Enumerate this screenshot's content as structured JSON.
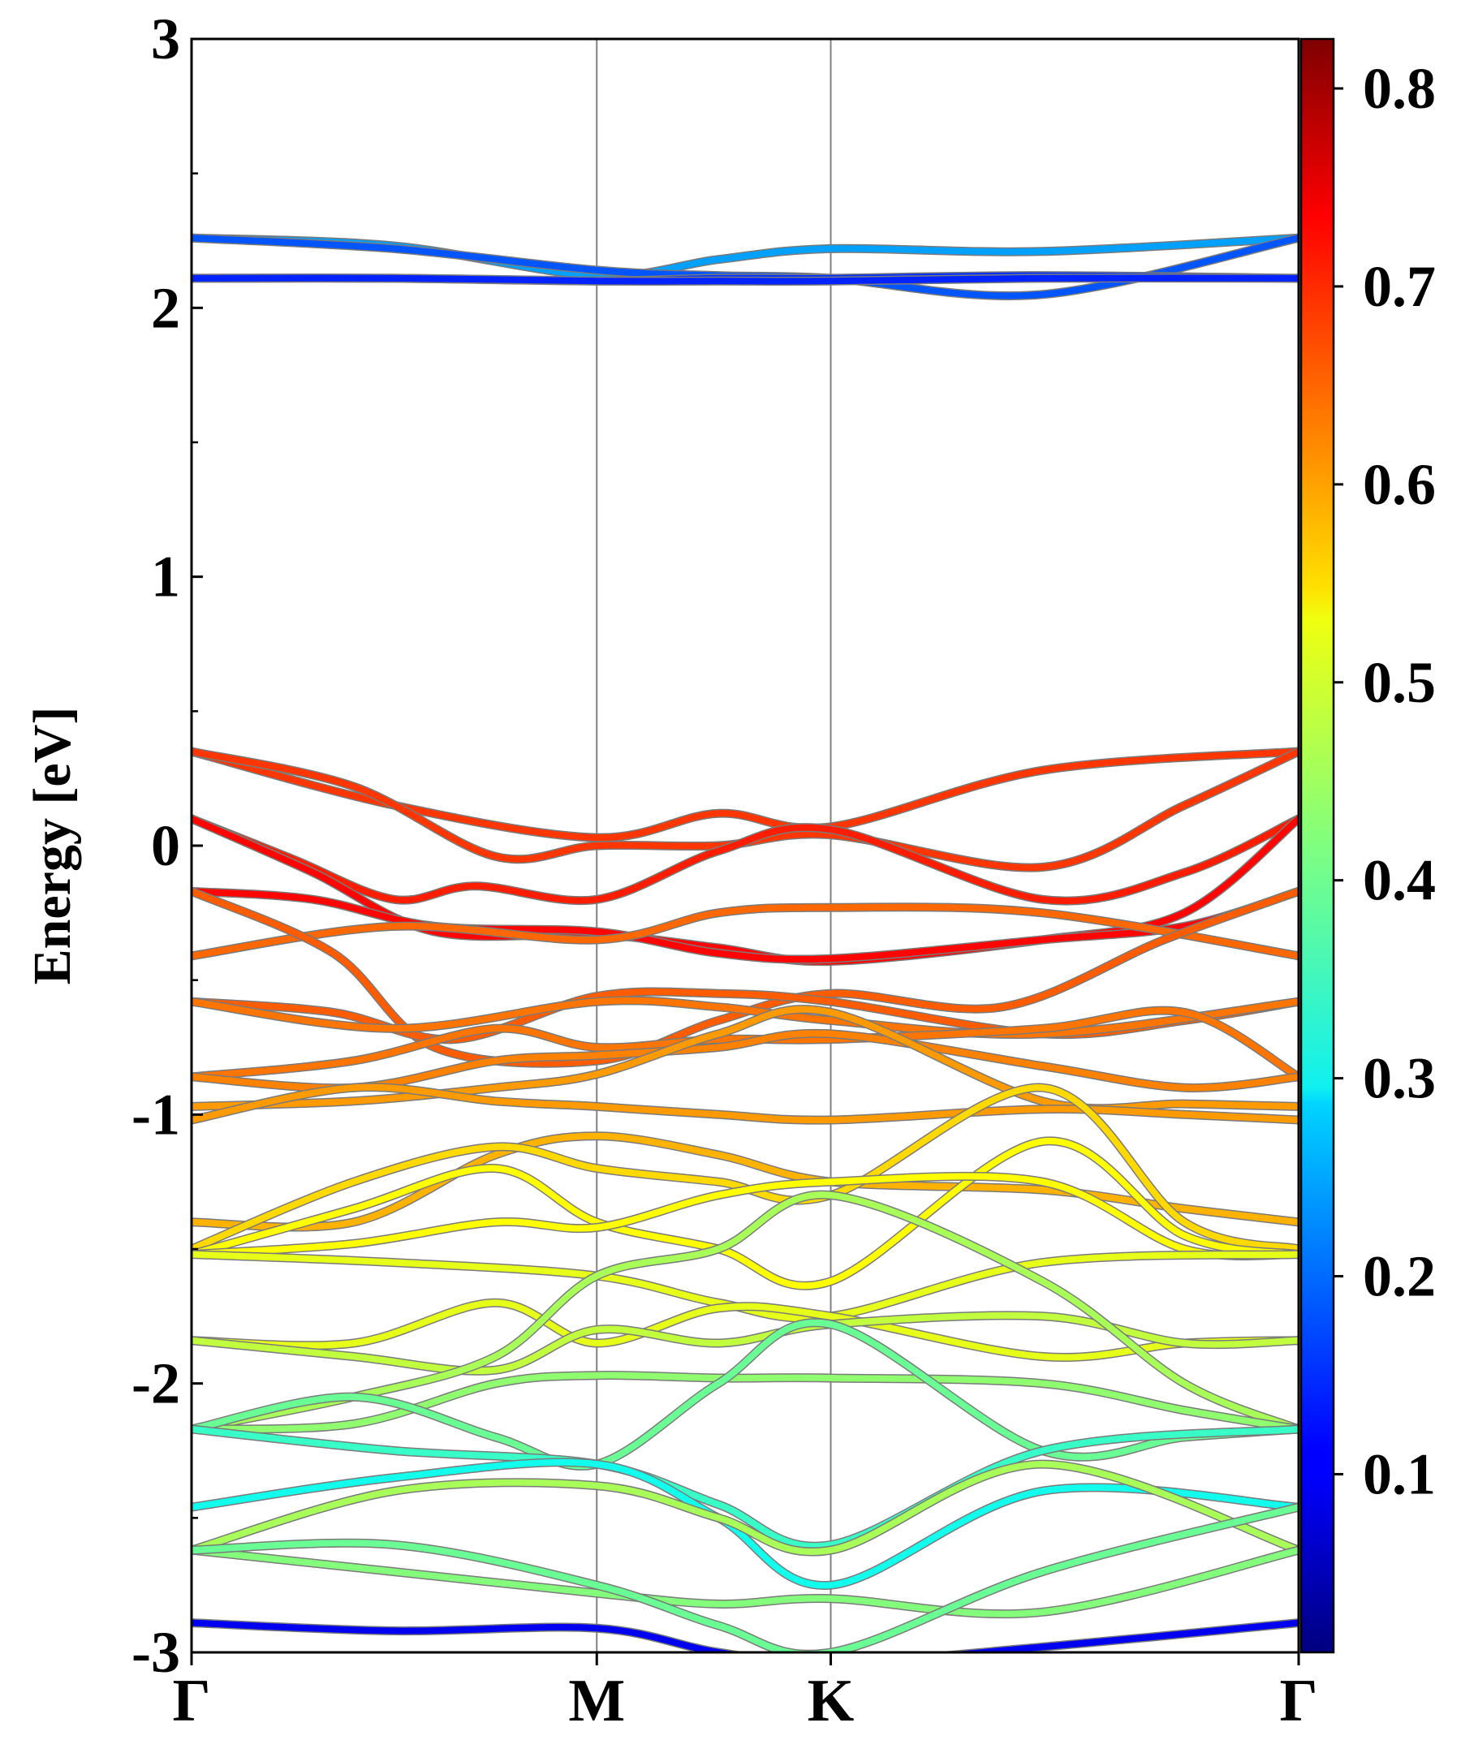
{
  "chart_data": {
    "type": "line",
    "title": "",
    "xlabel": "",
    "ylabel": "Energy [eV]",
    "ylim": [
      -3,
      3
    ],
    "yticks": [
      -3,
      -2,
      -1,
      0,
      1,
      2,
      3
    ],
    "x_ticks": [
      {
        "label": "Γ",
        "pos": 0.0
      },
      {
        "label": "M",
        "pos": 1.0
      },
      {
        "label": "K",
        "pos": 1.5774
      },
      {
        "label": "Γ",
        "pos": 2.7321
      }
    ],
    "vertical_lines_at": [
      1.0,
      1.5774
    ],
    "grid": false,
    "colorbar": {
      "colormap": "jet",
      "range": [
        0.01,
        0.825
      ],
      "ticks": [
        "0.1",
        "0.2",
        "0.3",
        "0.4",
        "0.5",
        "0.6",
        "0.7",
        "0.8"
      ]
    },
    "series": [
      {
        "weight": 0.24,
        "x": [
          0,
          0.5,
          1.0,
          1.3,
          1.5774,
          2.1,
          2.7321
        ],
        "y": [
          2.26,
          2.23,
          2.12,
          2.18,
          2.22,
          2.21,
          2.26
        ]
      },
      {
        "weight": 0.18,
        "x": [
          0,
          0.5,
          1.0,
          1.3,
          1.5774,
          2.1,
          2.7321
        ],
        "y": [
          2.26,
          2.22,
          2.14,
          2.12,
          2.11,
          2.05,
          2.26
        ]
      },
      {
        "weight": 0.15,
        "x": [
          0,
          0.5,
          1.0,
          1.3,
          1.5774,
          2.1,
          2.7321
        ],
        "y": [
          2.11,
          2.11,
          2.1,
          2.11,
          2.11,
          2.12,
          2.11
        ]
      },
      {
        "weight": 0.14,
        "x": [
          0,
          0.5,
          1.0,
          1.3,
          1.5774,
          2.1,
          2.7321
        ],
        "y": [
          2.11,
          2.11,
          2.1,
          2.1,
          2.1,
          2.11,
          2.11
        ]
      },
      {
        "weight": 0.68,
        "x": [
          0,
          0.5,
          1.0,
          1.3,
          1.5774,
          2.1,
          2.7321
        ],
        "y": [
          0.35,
          0.15,
          0.03,
          0.12,
          0.07,
          0.28,
          0.35
        ]
      },
      {
        "weight": 0.68,
        "x": [
          0,
          0.4,
          0.75,
          1.0,
          1.3,
          1.5774,
          2.1,
          2.45,
          2.7321
        ],
        "y": [
          0.35,
          0.22,
          -0.04,
          0.0,
          0.0,
          0.04,
          -0.08,
          0.15,
          0.35
        ]
      },
      {
        "weight": 0.7,
        "x": [
          0,
          0.25,
          0.5,
          0.7,
          1.0,
          1.3,
          1.5774,
          2.1,
          2.45,
          2.7321
        ],
        "y": [
          0.1,
          -0.05,
          -0.2,
          -0.15,
          -0.2,
          -0.02,
          0.06,
          -0.2,
          -0.1,
          0.1
        ]
      },
      {
        "weight": 0.72,
        "x": [
          0,
          0.3,
          0.6,
          1.0,
          1.3,
          1.5774,
          2.1,
          2.45,
          2.7321
        ],
        "y": [
          0.1,
          -0.1,
          -0.32,
          -0.33,
          -0.38,
          -0.43,
          -0.35,
          -0.25,
          0.1
        ]
      },
      {
        "weight": 0.72,
        "x": [
          0,
          0.3,
          0.6,
          1.0,
          1.3,
          1.5774,
          2.1,
          2.45,
          2.7321
        ],
        "y": [
          -0.17,
          -0.2,
          -0.3,
          -0.32,
          -0.4,
          -0.42,
          -0.35,
          -0.3,
          -0.17
        ]
      },
      {
        "weight": 0.64,
        "x": [
          0,
          0.5,
          1.0,
          1.3,
          1.5774,
          2.1,
          2.7321
        ],
        "y": [
          -0.41,
          -0.3,
          -0.35,
          -0.25,
          -0.23,
          -0.25,
          -0.41
        ]
      },
      {
        "weight": 0.65,
        "x": [
          0,
          0.35,
          0.6,
          1.0,
          1.3,
          1.5774,
          2.0,
          2.4,
          2.7321
        ],
        "y": [
          -0.17,
          -0.4,
          -0.75,
          -0.8,
          -0.65,
          -0.55,
          -0.6,
          -0.35,
          -0.17
        ]
      },
      {
        "weight": 0.65,
        "x": [
          0,
          0.35,
          0.65,
          1.0,
          1.3,
          1.5774,
          2.1,
          2.45,
          2.7321
        ],
        "y": [
          -0.58,
          -0.62,
          -0.72,
          -0.56,
          -0.55,
          -0.58,
          -0.7,
          -0.65,
          -0.58
        ]
      },
      {
        "weight": 0.63,
        "x": [
          0,
          0.5,
          1.0,
          1.3,
          1.5774,
          2.1,
          2.7321
        ],
        "y": [
          -0.58,
          -0.68,
          -0.58,
          -0.6,
          -0.65,
          -0.7,
          -0.58
        ]
      },
      {
        "weight": 0.63,
        "x": [
          0,
          0.4,
          0.75,
          1.0,
          1.3,
          1.5774,
          2.1,
          2.45,
          2.7321
        ],
        "y": [
          -0.86,
          -0.8,
          -0.68,
          -0.75,
          -0.72,
          -0.72,
          -0.68,
          -0.62,
          -0.86
        ]
      },
      {
        "weight": 0.62,
        "x": [
          0,
          0.4,
          0.75,
          1.0,
          1.3,
          1.5774,
          2.1,
          2.45,
          2.7321
        ],
        "y": [
          -0.86,
          -0.9,
          -0.8,
          -0.78,
          -0.75,
          -0.7,
          -0.82,
          -0.9,
          -0.86
        ]
      },
      {
        "weight": 0.6,
        "x": [
          0,
          0.4,
          0.75,
          1.0,
          1.3,
          1.5774,
          2.1,
          2.45,
          2.7321
        ],
        "y": [
          -0.97,
          -0.95,
          -0.9,
          -0.85,
          -0.7,
          -0.62,
          -0.95,
          -0.96,
          -0.97
        ]
      },
      {
        "weight": 0.6,
        "x": [
          0,
          0.4,
          0.75,
          1.0,
          1.3,
          1.5774,
          2.1,
          2.45,
          2.7321
        ],
        "y": [
          -1.02,
          -0.9,
          -0.95,
          -0.97,
          -1.0,
          -1.02,
          -0.98,
          -1.0,
          -1.02
        ]
      },
      {
        "weight": 0.58,
        "x": [
          0,
          0.4,
          0.75,
          1.0,
          1.3,
          1.5774,
          2.1,
          2.45,
          2.7321
        ],
        "y": [
          -1.4,
          -1.4,
          -1.15,
          -1.08,
          -1.15,
          -1.25,
          -1.28,
          -1.35,
          -1.4
        ]
      },
      {
        "weight": 0.55,
        "x": [
          0,
          0.4,
          0.75,
          1.0,
          1.3,
          1.5774,
          2.1,
          2.45,
          2.7321
        ],
        "y": [
          -1.5,
          -1.25,
          -1.12,
          -1.2,
          -1.25,
          -1.3,
          -0.9,
          -1.4,
          -1.5
        ]
      },
      {
        "weight": 0.52,
        "x": [
          0,
          0.4,
          0.75,
          1.0,
          1.3,
          1.5774,
          2.1,
          2.45,
          2.7321
        ],
        "y": [
          -1.52,
          -1.35,
          -1.2,
          -1.4,
          -1.5,
          -1.62,
          -1.1,
          -1.45,
          -1.52
        ]
      },
      {
        "weight": 0.52,
        "x": [
          0,
          0.4,
          0.75,
          1.0,
          1.3,
          1.5774,
          2.1,
          2.45,
          2.7321
        ],
        "y": [
          -1.52,
          -1.48,
          -1.4,
          -1.42,
          -1.3,
          -1.25,
          -1.25,
          -1.5,
          -1.52
        ]
      },
      {
        "weight": 0.5,
        "x": [
          0,
          0.5,
          1.0,
          1.3,
          1.5774,
          2.1,
          2.7321
        ],
        "y": [
          -1.52,
          -1.55,
          -1.6,
          -1.7,
          -1.75,
          -1.55,
          -1.52
        ]
      },
      {
        "weight": 0.5,
        "x": [
          0,
          0.4,
          0.75,
          1.0,
          1.3,
          1.5774,
          2.1,
          2.45,
          2.7321
        ],
        "y": [
          -1.84,
          -1.85,
          -1.7,
          -1.85,
          -1.72,
          -1.75,
          -1.9,
          -1.85,
          -1.84
        ]
      },
      {
        "weight": 0.47,
        "x": [
          0,
          0.4,
          0.75,
          1.0,
          1.3,
          1.5774,
          2.1,
          2.45,
          2.7321
        ],
        "y": [
          -1.84,
          -1.9,
          -1.95,
          -1.8,
          -1.85,
          -1.78,
          -1.75,
          -1.85,
          -1.84
        ]
      },
      {
        "weight": 0.45,
        "x": [
          0,
          0.4,
          0.75,
          1.0,
          1.3,
          1.5774,
          2.1,
          2.45,
          2.7321
        ],
        "y": [
          -2.17,
          -2.05,
          -1.9,
          -1.6,
          -1.5,
          -1.3,
          -1.62,
          -2.0,
          -2.17
        ]
      },
      {
        "weight": 0.43,
        "x": [
          0,
          0.4,
          0.75,
          1.0,
          1.3,
          1.5774,
          2.1,
          2.45,
          2.7321
        ],
        "y": [
          -2.17,
          -2.15,
          -2.0,
          -1.97,
          -1.98,
          -1.98,
          -2.0,
          -2.1,
          -2.17
        ]
      },
      {
        "weight": 0.4,
        "x": [
          0,
          0.4,
          0.75,
          1.0,
          1.3,
          1.5774,
          2.1,
          2.45,
          2.7321
        ],
        "y": [
          -2.17,
          -2.05,
          -2.2,
          -2.3,
          -2.0,
          -1.78,
          -2.25,
          -2.2,
          -2.17
        ]
      },
      {
        "weight": 0.36,
        "x": [
          0,
          0.5,
          1.0,
          1.3,
          1.5774,
          2.1,
          2.7321
        ],
        "y": [
          -2.17,
          -2.25,
          -2.3,
          -2.45,
          -2.6,
          -2.25,
          -2.17
        ]
      },
      {
        "weight": 0.33,
        "x": [
          0,
          0.5,
          1.0,
          1.3,
          1.5774,
          2.1,
          2.7321
        ],
        "y": [
          -2.46,
          -2.35,
          -2.3,
          -2.5,
          -2.75,
          -2.4,
          -2.46
        ]
      },
      {
        "weight": 0.45,
        "x": [
          0,
          0.5,
          1.0,
          1.3,
          1.5774,
          2.1,
          2.7321
        ],
        "y": [
          -2.62,
          -2.4,
          -2.38,
          -2.5,
          -2.62,
          -2.3,
          -2.62
        ]
      },
      {
        "weight": 0.42,
        "x": [
          0,
          0.5,
          1.0,
          1.3,
          1.5774,
          2.1,
          2.7321
        ],
        "y": [
          -2.62,
          -2.7,
          -2.78,
          -2.82,
          -2.8,
          -2.85,
          -2.62
        ]
      },
      {
        "weight": 0.4,
        "x": [
          0,
          0.5,
          1.0,
          1.3,
          1.5774,
          2.1,
          2.7321
        ],
        "y": [
          -2.62,
          -2.6,
          -2.75,
          -2.9,
          -3.0,
          -2.7,
          -2.46
        ]
      },
      {
        "weight": 0.1,
        "x": [
          0,
          0.5,
          1.0,
          1.3,
          1.5774,
          2.1,
          2.7321
        ],
        "y": [
          -2.89,
          -2.92,
          -2.91,
          -3.0,
          -3.04,
          -2.98,
          -2.89
        ]
      }
    ]
  }
}
